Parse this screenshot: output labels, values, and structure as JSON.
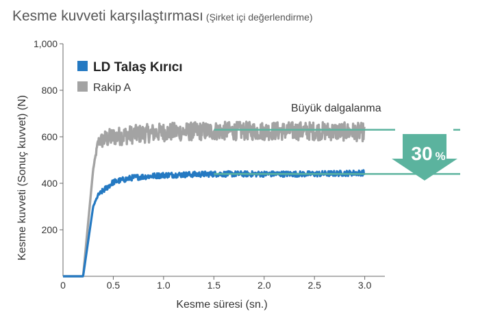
{
  "title": {
    "main": "Kesme kuvveti karşılaştırması",
    "sub": "(Şirket içi değerlendirme)"
  },
  "colors": {
    "ld": "#2479c2",
    "rival": "#a3a3a3",
    "teal": "#5bb39e",
    "axis": "#666666",
    "text": "#333333"
  },
  "chart_data": {
    "type": "line",
    "xlabel": "Kesme süresi (sn.)",
    "ylabel": "Kesme kuvveti (Sonuç kuvvet)   (N)",
    "xlim": [
      0,
      3.2
    ],
    "ylim": [
      0,
      1000
    ],
    "x_ticks": [
      "0",
      "0.5",
      "1.0",
      "1.5",
      "2.0",
      "2.5",
      "3.0"
    ],
    "x_tick_values": [
      0,
      0.5,
      1.0,
      1.5,
      2.0,
      2.5,
      3.0
    ],
    "y_ticks": [
      "200",
      "400",
      "600",
      "800",
      "1,000"
    ],
    "y_tick_values": [
      200,
      400,
      600,
      800,
      1000
    ],
    "grid": false,
    "legend_position": "top-left",
    "series": [
      {
        "name": "LD Talaş Kırıcı",
        "color_key": "ld",
        "x": [
          0,
          0.2,
          0.3,
          0.35,
          0.5,
          0.7,
          1.0,
          1.5,
          2.0,
          2.5,
          3.0
        ],
        "y": [
          0,
          0,
          300,
          350,
          405,
          425,
          435,
          440,
          440,
          440,
          445
        ],
        "fluctuation": 12
      },
      {
        "name": "Rakip A",
        "color_key": "rival",
        "x": [
          0,
          0.2,
          0.3,
          0.35,
          0.5,
          0.7,
          1.0,
          1.5,
          2.0,
          2.5,
          3.0
        ],
        "y": [
          0,
          0,
          460,
          580,
          600,
          610,
          620,
          625,
          625,
          625,
          620
        ],
        "fluctuation": 40
      }
    ],
    "annotations": {
      "fluctuation_label": "Büyük dalgalanma",
      "reduction_label": "30",
      "reduction_unit": "%",
      "rival_level": 630,
      "ld_level": 440
    }
  }
}
